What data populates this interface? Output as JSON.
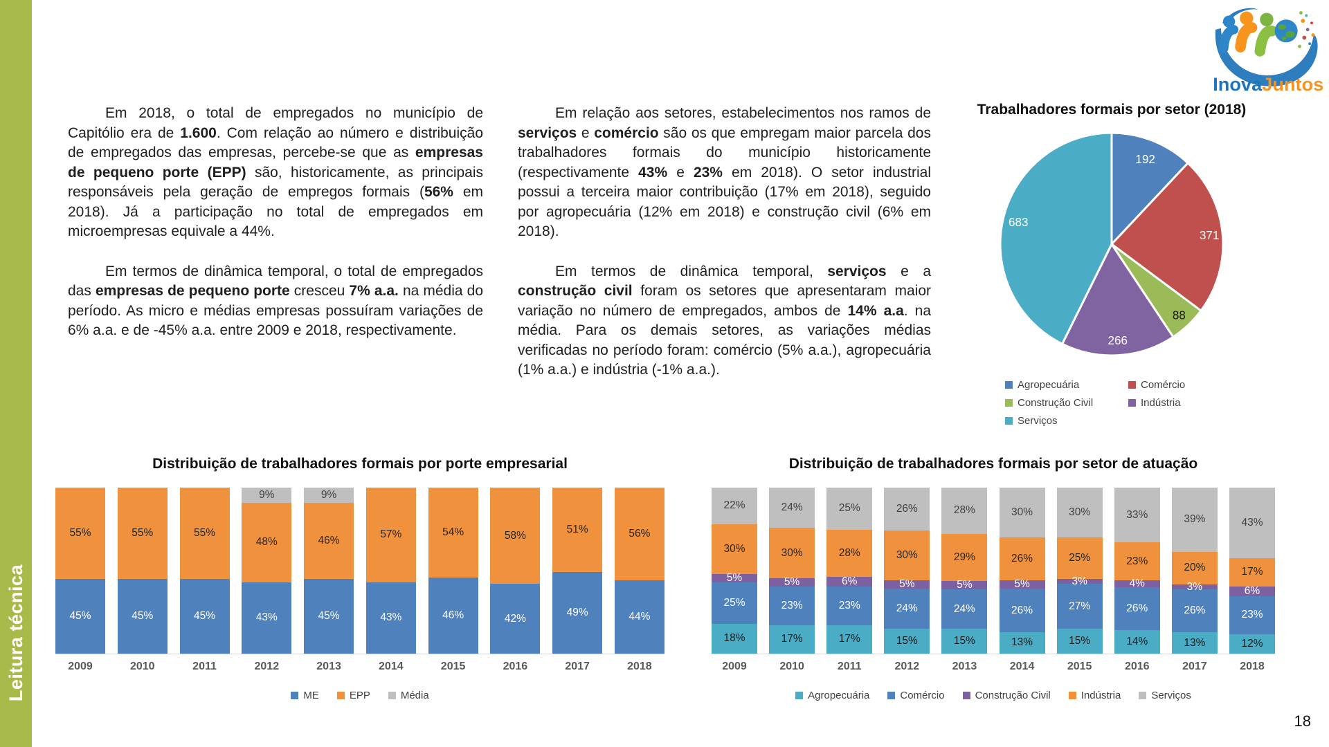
{
  "page": {
    "number": "18"
  },
  "sidebar": {
    "label": "Leitura técnica",
    "color": "#a8bb4a"
  },
  "logo": {
    "inova": "Inova",
    "juntos": "Juntos"
  },
  "paragraphs": {
    "col1": [
      [
        {
          "t": "Em 2018, o total de empregados no município de Capitólio era de "
        },
        {
          "t": "1.600",
          "b": true
        },
        {
          "t": ". Com relação ao número e distribuição de empregados das empresas, percebe-se que as "
        },
        {
          "t": "empresas de pequeno porte (EPP)",
          "b": true
        },
        {
          "t": " são, historicamente, as principais responsáveis pela geração de empregos formais ("
        },
        {
          "t": "56%",
          "b": true
        },
        {
          "t": " em 2018). Já a participação no total de empregados em microempresas equivale a 44%."
        }
      ],
      [
        {
          "t": "Em termos de dinâmica temporal, o total de empregados das "
        },
        {
          "t": "empresas de pequeno porte",
          "b": true
        },
        {
          "t": " cresceu "
        },
        {
          "t": "7% a.a.",
          "b": true
        },
        {
          "t": " na média do período. As micro e médias empresas possuíram variações de 6% a.a. e de -45% a.a. entre 2009 e 2018, respectivamente."
        }
      ]
    ],
    "col2": [
      [
        {
          "t": "Em relação aos setores, estabelecimentos nos ramos de "
        },
        {
          "t": "serviços",
          "b": true
        },
        {
          "t": " e "
        },
        {
          "t": "comércio",
          "b": true
        },
        {
          "t": " são os que empregam maior parcela dos trabalhadores formais do município historicamente (respectivamente "
        },
        {
          "t": "43%",
          "b": true
        },
        {
          "t": " e "
        },
        {
          "t": "23%",
          "b": true
        },
        {
          "t": " em 2018). O setor industrial possui a terceira maior contribuição (17% em 2018), seguido por agropecuária (12% em 2018) e construção civil (6% em 2018)."
        }
      ],
      [
        {
          "t": "Em termos de dinâmica temporal, "
        },
        {
          "t": "serviços",
          "b": true
        },
        {
          "t": " e a "
        },
        {
          "t": "construção civil",
          "b": true
        },
        {
          "t": " foram os setores que apresentaram maior variação no número de empregados, ambos de "
        },
        {
          "t": "14% a.a",
          "b": true
        },
        {
          "t": ". na média. Para os demais setores, as variações médias verificadas no período foram: comércio (5% a.a.), agropecuária (1% a.a.) e indústria (-1% a.a.)."
        }
      ]
    ]
  },
  "chart_data": [
    {
      "id": "pie-setor",
      "type": "pie",
      "title": "Trabalhadores formais por setor (2018)",
      "total": 1600,
      "legend_position": "bottom",
      "slices": [
        {
          "label": "Agropecuária",
          "value": 192,
          "color": "#4f81bd",
          "label_color": "#ffffff",
          "label_r": 0.82
        },
        {
          "label": "Comércio",
          "value": 371,
          "color": "#c0504d",
          "label_color": "#ffffff",
          "label_r": 0.88
        },
        {
          "label": "Construção Civil",
          "value": 88,
          "color": "#9bbb59",
          "label_color": "#1a1a1a",
          "label_r": 0.88
        },
        {
          "label": "Indústria",
          "value": 266,
          "color": "#8064a2",
          "label_color": "#ffffff",
          "label_r": 0.87
        },
        {
          "label": "Serviços",
          "value": 683,
          "color": "#4bacc6",
          "label_color": "#ffffff",
          "label_r": 0.86
        }
      ]
    },
    {
      "id": "bar-porte",
      "type": "bar",
      "stacked": true,
      "title": "Distribuição de trabalhadores formais por porte empresarial",
      "unit": "%",
      "categories": [
        "2009",
        "2010",
        "2011",
        "2012",
        "2013",
        "2014",
        "2015",
        "2016",
        "2017",
        "2018"
      ],
      "ylim": [
        0,
        100
      ],
      "grid": false,
      "legend_position": "bottom",
      "series": [
        {
          "name": "ME",
          "color": "#4f81bd",
          "label_color": "#ffffff",
          "values": [
            45,
            45,
            45,
            43,
            45,
            43,
            46,
            42,
            49,
            44
          ]
        },
        {
          "name": "EPP",
          "color": "#f0913d",
          "label_color": "#262626",
          "values": [
            55,
            55,
            55,
            48,
            46,
            57,
            54,
            58,
            51,
            56
          ]
        },
        {
          "name": "Média",
          "color": "#bfbfbf",
          "label_color": "#404040",
          "values": [
            0,
            0,
            0,
            9,
            9,
            0,
            0,
            0,
            0,
            0
          ]
        }
      ]
    },
    {
      "id": "bar-setor",
      "type": "bar",
      "stacked": true,
      "title": "Distribuição de trabalhadores formais por setor de atuação",
      "unit": "%",
      "categories": [
        "2009",
        "2010",
        "2011",
        "2012",
        "2013",
        "2014",
        "2015",
        "2016",
        "2017",
        "2018"
      ],
      "ylim": [
        0,
        100
      ],
      "grid": false,
      "legend_position": "bottom",
      "series": [
        {
          "name": "Agropecuária",
          "color": "#4bacc6",
          "label_color": "#1a1a1a",
          "values": [
            18,
            17,
            17,
            15,
            15,
            13,
            15,
            14,
            13,
            12
          ]
        },
        {
          "name": "Comércio",
          "color": "#4f81bd",
          "label_color": "#ffffff",
          "values": [
            25,
            23,
            23,
            24,
            24,
            26,
            27,
            26,
            26,
            23
          ]
        },
        {
          "name": "Construção Civil",
          "color": "#7d60a0",
          "label_color": "#ffffff",
          "values": [
            5,
            5,
            6,
            5,
            5,
            5,
            3,
            4,
            3,
            6
          ]
        },
        {
          "name": "Indústria",
          "color": "#f0913d",
          "label_color": "#262626",
          "values": [
            30,
            30,
            28,
            30,
            29,
            26,
            25,
            23,
            20,
            17
          ]
        },
        {
          "name": "Serviços",
          "color": "#bfbfbf",
          "label_color": "#404040",
          "values": [
            22,
            24,
            25,
            26,
            28,
            30,
            30,
            33,
            39,
            43
          ]
        }
      ]
    }
  ]
}
